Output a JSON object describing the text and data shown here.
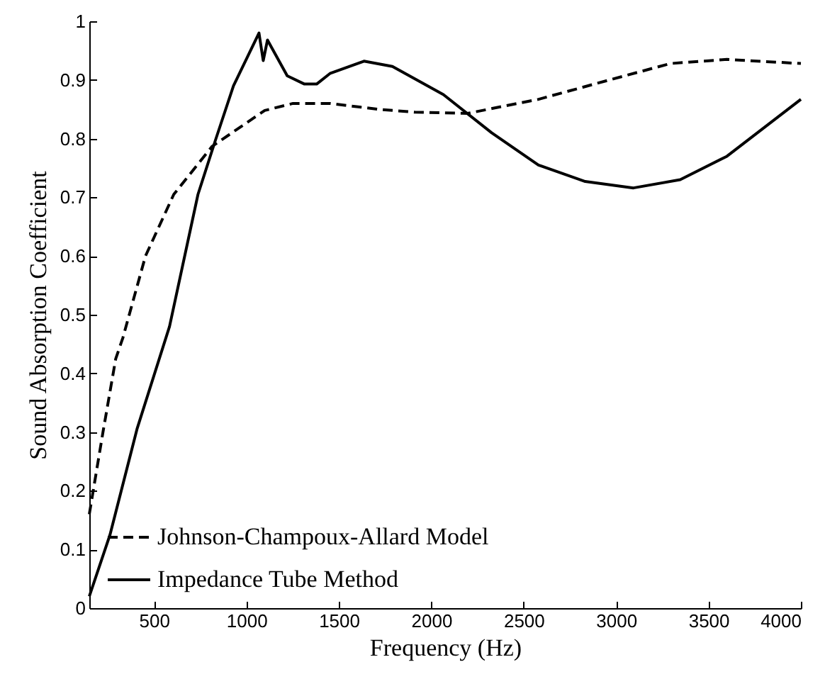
{
  "chart_data": {
    "type": "line",
    "xlabel": "Frequency (Hz)",
    "ylabel": "Sound Absorption Coefficient",
    "xlim": [
      150,
      4000
    ],
    "xticks": [
      500,
      1000,
      1500,
      2000,
      2500,
      3000,
      3500,
      4000
    ],
    "ylim": [
      0,
      1
    ],
    "yticks": [
      0,
      0.1,
      0.2,
      0.3,
      0.4,
      0.5,
      0.6,
      0.7,
      0.8,
      0.9,
      1
    ],
    "grid": false,
    "legend": "bottom left",
    "marker": "none",
    "series": [
      {
        "name": "Johnson-Champoux-Allard Model",
        "color": "#000000",
        "line_style": "dashed",
        "x": [
          150,
          224,
          293,
          331,
          454,
          607,
          815,
          1099,
          1252,
          1452,
          1712,
          1912,
          2196,
          2580,
          2964,
          3294,
          3600,
          4000
        ],
        "values": [
          0.16,
          0.3,
          0.425,
          0.46,
          0.6,
          0.705,
          0.787,
          0.848,
          0.86,
          0.86,
          0.85,
          0.845,
          0.843,
          0.867,
          0.9,
          0.928,
          0.935,
          0.928
        ]
      },
      {
        "name": "Impedance Tube Method",
        "color": "#000000",
        "line_style": "solid",
        "x": [
          150,
          262,
          408,
          584,
          738,
          830,
          930,
          1068,
          1091,
          1114,
          1221,
          1314,
          1380,
          1452,
          1636,
          1790,
          2066,
          2327,
          2580,
          2833,
          3094,
          3347,
          3600,
          4000
        ],
        "values": [
          0.02,
          0.125,
          0.305,
          0.48,
          0.705,
          0.795,
          0.89,
          0.98,
          0.933,
          0.968,
          0.907,
          0.893,
          0.893,
          0.911,
          0.932,
          0.923,
          0.875,
          0.81,
          0.755,
          0.727,
          0.716,
          0.73,
          0.77,
          0.867
        ]
      }
    ]
  }
}
